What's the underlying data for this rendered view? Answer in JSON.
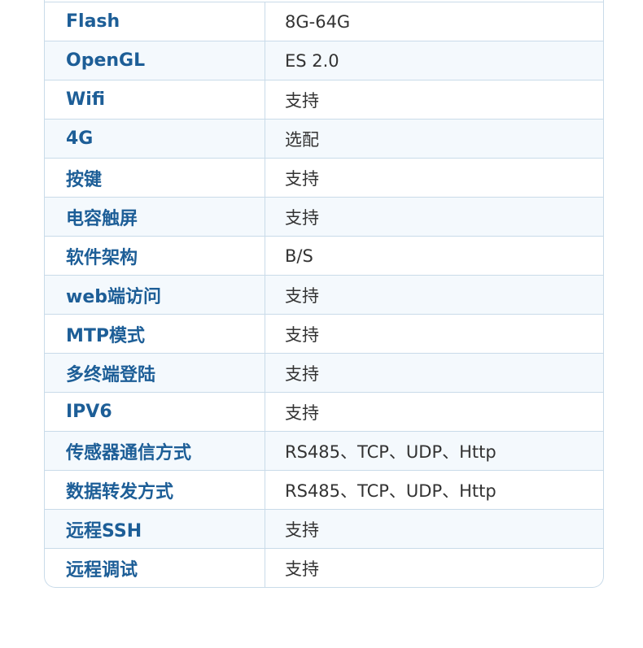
{
  "rows": [
    {
      "label": "Flash",
      "value": "8G-64G"
    },
    {
      "label": "OpenGL",
      "value": "ES 2.0"
    },
    {
      "label": "Wifi",
      "value": "支持"
    },
    {
      "label": "4G",
      "value": "选配"
    },
    {
      "label": "按键",
      "value": "支持"
    },
    {
      "label": "电容触屏",
      "value": "支持"
    },
    {
      "label": "软件架构",
      "value": "B/S"
    },
    {
      "label": "web端访问",
      "value": "支持"
    },
    {
      "label": "MTP模式",
      "value": "支持"
    },
    {
      "label": "多终端登陆",
      "value": "支持"
    },
    {
      "label": "IPV6",
      "value": "支持"
    },
    {
      "label": "传感器通信方式",
      "value": "RS485、TCP、UDP、Http"
    },
    {
      "label": "数据转发方式",
      "value": "RS485、TCP、UDP、Http"
    },
    {
      "label": "远程SSH",
      "value": "支持"
    },
    {
      "label": "远程调试",
      "value": "支持"
    }
  ]
}
